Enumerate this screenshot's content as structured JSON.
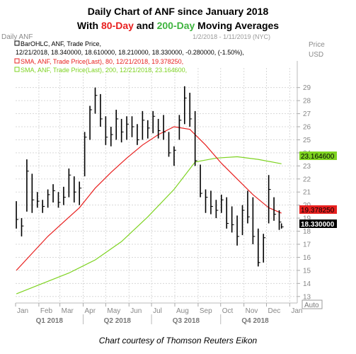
{
  "title": {
    "line1": "Daily Chart of ANF since January 2018",
    "line2_prefix": "With ",
    "line2_80": "80-Day",
    "line2_mid": " and ",
    "line2_200": "200-Day",
    "line2_suffix": " Moving Averages"
  },
  "chart_header": {
    "symbol_label": "Daily ANF",
    "date_range": "1/2/2018 - 1/11/2019 (NYC)",
    "price_label": "Price",
    "currency_label": "USD",
    "auto_button": "Auto"
  },
  "legend": {
    "bar_line1": "BarOHLC, ANF, Trade Price,",
    "bar_line2": "12/21/2018, 18.340000, 18.610000, 18.210000, 18.330000, -0.280000, (-1.50%),",
    "sma80": "SMA, ANF, Trade Price(Last),  80,  12/21/2018, 19.378250,",
    "sma200": "SMA, ANF, Trade Price(Last),  200,  12/21/2018, 23.164600,"
  },
  "footer": "Chart courtesy of Thomson Reuters Eikon",
  "colors": {
    "sma80": "#e8201f",
    "sma200": "#7ed321",
    "price_bars": "#000000",
    "grid": "#d8d8d8",
    "axis_text": "#888888"
  },
  "chart_data": {
    "type": "line",
    "title": "Daily Chart of ANF since January 2018",
    "ylim": [
      12.5,
      30.5
    ],
    "y_ticks": [
      13,
      14,
      15,
      16,
      17,
      18,
      19,
      20,
      21,
      22,
      23,
      24,
      25,
      26,
      27,
      28,
      29
    ],
    "x_months": [
      "Jan",
      "Feb",
      "Mar",
      "Apr",
      "May",
      "Jun",
      "Jul",
      "Aug",
      "Sep",
      "Oct",
      "Nov",
      "Dec",
      "Jan"
    ],
    "x_quarters": [
      "Q1 2018",
      "Q2 2018",
      "Q3 2018",
      "Q4 2018"
    ],
    "grid": true,
    "legend_position": "top-left",
    "last_values": {
      "sma200": "23.164600",
      "sma80": "19.378250",
      "close": "18.330000"
    },
    "series": [
      {
        "name": "BarOHLC, ANF, Trade Price",
        "type": "ohlc",
        "x": [
          "2018-01-02",
          "2018-01-09",
          "2018-01-16",
          "2018-01-23",
          "2018-01-30",
          "2018-02-06",
          "2018-02-13",
          "2018-02-20",
          "2018-02-27",
          "2018-03-06",
          "2018-03-13",
          "2018-03-20",
          "2018-03-27",
          "2018-04-03",
          "2018-04-10",
          "2018-04-17",
          "2018-04-24",
          "2018-05-01",
          "2018-05-08",
          "2018-05-15",
          "2018-05-22",
          "2018-05-29",
          "2018-06-05",
          "2018-06-12",
          "2018-06-19",
          "2018-06-26",
          "2018-07-03",
          "2018-07-10",
          "2018-07-17",
          "2018-07-24",
          "2018-07-31",
          "2018-08-07",
          "2018-08-14",
          "2018-08-21",
          "2018-08-28",
          "2018-09-04",
          "2018-09-11",
          "2018-09-18",
          "2018-09-25",
          "2018-10-02",
          "2018-10-09",
          "2018-10-16",
          "2018-10-23",
          "2018-10-30",
          "2018-11-06",
          "2018-11-13",
          "2018-11-20",
          "2018-11-27",
          "2018-12-04",
          "2018-12-11",
          "2018-12-18",
          "2018-12-21"
        ],
        "high": [
          20.3,
          19.0,
          23.5,
          22.4,
          21.0,
          20.4,
          21.2,
          21.6,
          21.0,
          21.4,
          22.8,
          22.2,
          21.8,
          25.6,
          27.6,
          29.0,
          28.5,
          26.8,
          26.0,
          27.3,
          26.6,
          26.8,
          26.8,
          26.2,
          27.2,
          26.5,
          27.2,
          26.6,
          26.9,
          25.6,
          24.5,
          26.9,
          29.1,
          28.6,
          27.2,
          23.1,
          21.2,
          21.1,
          20.4,
          20.8,
          20.6,
          19.9,
          19.2,
          20.0,
          21.1,
          20.6,
          18.2,
          17.8,
          22.3,
          20.6,
          19.6,
          18.6
        ],
        "low": [
          18.2,
          17.6,
          19.5,
          19.4,
          19.8,
          19.4,
          19.8,
          20.2,
          19.8,
          20.0,
          20.6,
          20.2,
          20.0,
          22.2,
          25.0,
          27.0,
          26.0,
          24.6,
          24.5,
          25.0,
          24.8,
          25.0,
          25.2,
          24.6,
          25.0,
          25.1,
          25.5,
          25.1,
          25.0,
          23.7,
          23.0,
          25.0,
          26.2,
          26.0,
          23.0,
          20.6,
          19.4,
          19.3,
          19.0,
          19.4,
          18.2,
          17.9,
          16.9,
          17.7,
          18.6,
          17.0,
          15.3,
          15.6,
          18.6,
          18.8,
          18.1,
          18.2
        ],
        "close": [
          18.9,
          18.4,
          22.6,
          20.4,
          20.3,
          19.9,
          20.8,
          21.1,
          20.2,
          20.6,
          22.3,
          21.0,
          21.3,
          25.2,
          27.3,
          28.4,
          26.6,
          25.2,
          25.4,
          26.6,
          25.6,
          26.2,
          26.0,
          25.0,
          26.5,
          25.9,
          26.8,
          25.7,
          25.6,
          24.0,
          24.2,
          26.5,
          28.2,
          26.6,
          23.4,
          20.9,
          20.6,
          19.9,
          19.6,
          20.4,
          18.6,
          18.5,
          17.6,
          19.6,
          19.1,
          17.6,
          15.6,
          17.5,
          21.2,
          19.3,
          18.7,
          18.33
        ]
      },
      {
        "name": "SMA, ANF, Trade Price(Last), 80",
        "type": "line",
        "x": [
          "2018-01-02",
          "2018-01-23",
          "2018-02-13",
          "2018-03-06",
          "2018-03-27",
          "2018-04-17",
          "2018-05-08",
          "2018-05-29",
          "2018-06-19",
          "2018-07-10",
          "2018-07-31",
          "2018-08-21",
          "2018-09-11",
          "2018-10-02",
          "2018-10-23",
          "2018-11-13",
          "2018-12-04",
          "2018-12-21"
        ],
        "values": [
          15.0,
          16.3,
          17.6,
          18.7,
          19.8,
          21.3,
          22.5,
          23.6,
          24.6,
          25.4,
          26.0,
          25.8,
          24.6,
          23.2,
          22.0,
          20.8,
          19.8,
          19.378
        ]
      },
      {
        "name": "SMA, ANF, Trade Price(Last), 200",
        "type": "line",
        "x": [
          "2018-01-02",
          "2018-02-06",
          "2018-03-13",
          "2018-04-17",
          "2018-05-22",
          "2018-06-26",
          "2018-07-31",
          "2018-08-28",
          "2018-09-25",
          "2018-10-23",
          "2018-11-20",
          "2018-12-21"
        ],
        "values": [
          13.2,
          14.0,
          14.8,
          15.8,
          17.2,
          19.1,
          21.2,
          23.3,
          23.6,
          23.7,
          23.5,
          23.1646
        ]
      }
    ]
  }
}
